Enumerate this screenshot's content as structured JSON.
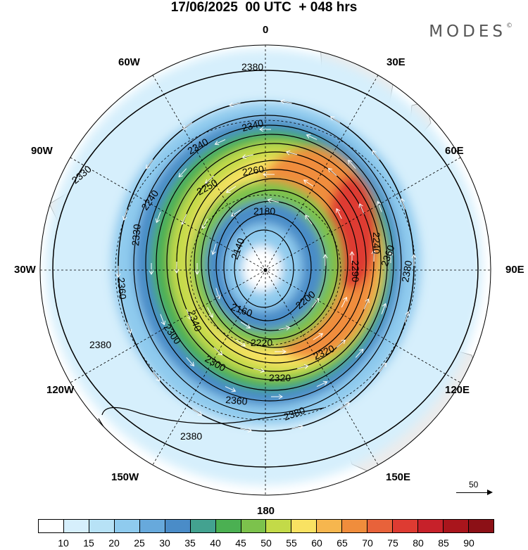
{
  "header": {
    "title": "17/06/2025  00 UTC  + 048 hrs",
    "brand": "MODES",
    "brand_mark": "©"
  },
  "map": {
    "projection": "south-polar-stereographic",
    "longitude_labels": [
      {
        "text": "0",
        "name": "lon-label-0"
      },
      {
        "text": "30E",
        "name": "lon-label-30e"
      },
      {
        "text": "60E",
        "name": "lon-label-60e"
      },
      {
        "text": "90E",
        "name": "lon-label-90e"
      },
      {
        "text": "120E",
        "name": "lon-label-120e"
      },
      {
        "text": "150E",
        "name": "lon-label-150e"
      },
      {
        "text": "180",
        "name": "lon-label-180"
      },
      {
        "text": "150W",
        "name": "lon-label-150w"
      },
      {
        "text": "120W",
        "name": "lon-label-120w"
      },
      {
        "text": "90W",
        "name": "lon-label-90w"
      },
      {
        "text": "60W",
        "name": "lon-label-60w"
      },
      {
        "text": "30W",
        "name": "lon-label-30w"
      }
    ],
    "contour_labels": [
      "2380",
      "2340",
      "2340",
      "2330",
      "2260",
      "2250",
      "2240",
      "2180",
      "2140",
      "2160",
      "2200",
      "2220",
      "2300",
      "2320",
      "2320",
      "2360",
      "2380",
      "2380",
      "2380",
      "2340",
      "2360",
      "2330",
      "2290",
      "2240",
      "2360",
      "2380",
      "2300"
    ],
    "reference_vector": "50"
  },
  "colorbar": {
    "colors": [
      "#ffffff",
      "#d6effc",
      "#b7e2f6",
      "#8fcbee",
      "#67a9dc",
      "#4a8cc8",
      "#43a290",
      "#4bb052",
      "#7cc24c",
      "#c3da48",
      "#f9e262",
      "#f6b64e",
      "#f08d3c",
      "#e8623a",
      "#de3b32",
      "#c7212a",
      "#a9151c",
      "#8c1016"
    ],
    "ticks": [
      "10",
      "15",
      "20",
      "25",
      "30",
      "35",
      "40",
      "45",
      "50",
      "55",
      "60",
      "65",
      "70",
      "75",
      "80",
      "85",
      "90"
    ]
  }
}
